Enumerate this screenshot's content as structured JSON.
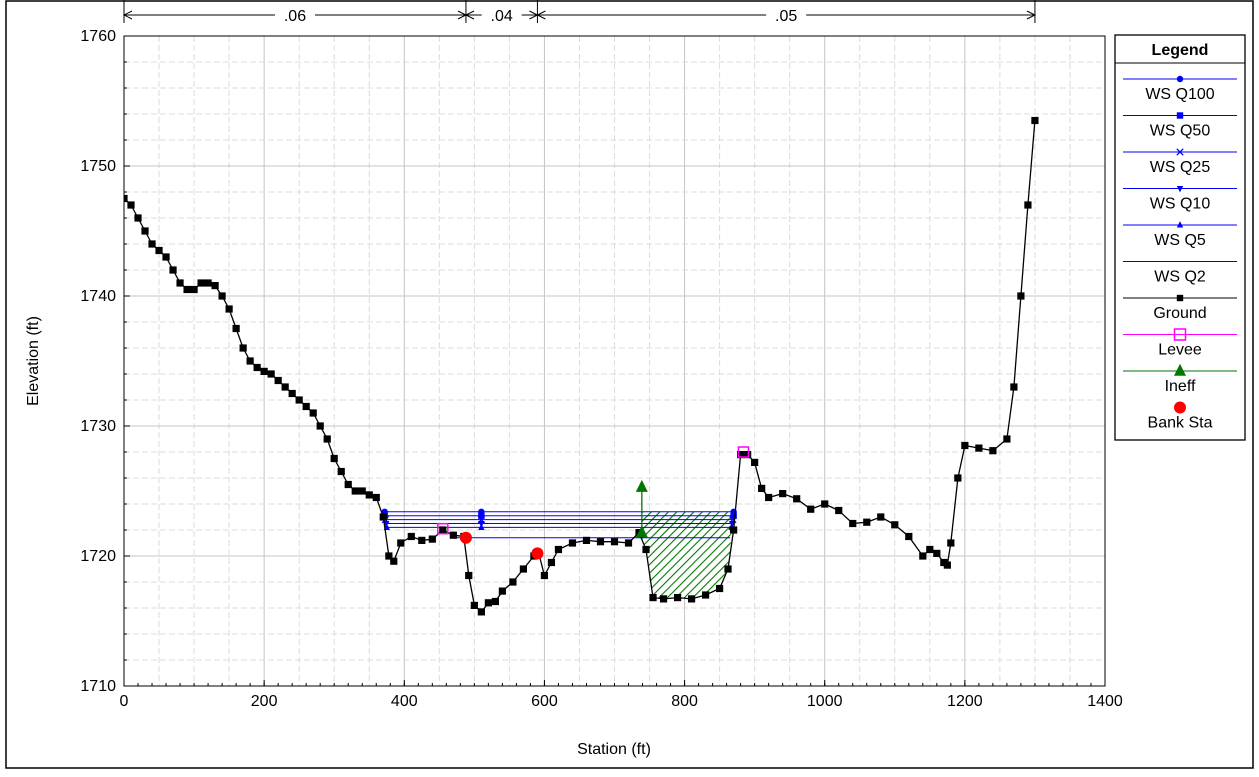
{
  "chart_data": {
    "type": "line",
    "title": "",
    "xlabel": "Station (ft)",
    "ylabel": "Elevation (ft)",
    "xlim": [
      0,
      1400
    ],
    "ylim": [
      1710,
      1760
    ],
    "x_ticks": [
      0,
      200,
      400,
      600,
      800,
      1000,
      1200,
      1400
    ],
    "y_ticks": [
      1710,
      1720,
      1730,
      1740,
      1750,
      1760
    ],
    "x_tick_labels": [
      "0",
      "200",
      "400",
      "600",
      "800",
      "1000",
      "1200",
      "1400"
    ],
    "y_tick_labels": [
      "1710",
      "1720",
      "1730",
      "1740",
      "1750",
      "1760"
    ],
    "grid": true,
    "legend_placement": "right-outside",
    "manning_n": {
      "breaks": [
        0,
        488,
        590,
        1300
      ],
      "labels": [
        ".06",
        ".04",
        ".05"
      ]
    },
    "series": [
      {
        "name": "WS Q100",
        "color": "#0000ff",
        "marker": "circle",
        "segments": [
          [
            [
              372,
              1723.4
            ],
            [
              870,
              1723.4
            ]
          ]
        ]
      },
      {
        "name": "WS Q50",
        "color": "#0000ff",
        "marker": "square",
        "segments": [
          [
            [
              372,
              1723.1
            ],
            [
              870,
              1723.1
            ]
          ]
        ]
      },
      {
        "name": "WS Q25",
        "color": "#0000ff",
        "marker": "x",
        "segments": [
          [
            [
              373,
              1722.8
            ],
            [
              869,
              1722.8
            ]
          ]
        ]
      },
      {
        "name": "WS Q10",
        "color": "#0000ff",
        "marker": "triangle-down",
        "segments": [
          [
            [
              374,
              1722.5
            ],
            [
              868,
              1722.5
            ]
          ]
        ]
      },
      {
        "name": "WS Q5",
        "color": "#0000ff",
        "marker": "triangle-up",
        "segments": [
          [
            [
              375,
              1722.2
            ],
            [
              867,
              1722.2
            ]
          ]
        ]
      },
      {
        "name": "WS Q2",
        "color": "#0000ff",
        "marker": "none",
        "segments": [
          [
            [
              466,
              1721.4
            ],
            [
              865,
              1721.4
            ]
          ]
        ]
      },
      {
        "name": "Ground",
        "color": "#000000",
        "marker": "square",
        "x": [
          0,
          10,
          20,
          30,
          40,
          50,
          60,
          70,
          80,
          90,
          100,
          110,
          120,
          130,
          140,
          150,
          160,
          170,
          180,
          190,
          200,
          210,
          220,
          230,
          240,
          250,
          260,
          270,
          280,
          290,
          300,
          310,
          320,
          330,
          340,
          350,
          360,
          370,
          378,
          385,
          395,
          410,
          425,
          440,
          455,
          470,
          485,
          492,
          500,
          510,
          520,
          530,
          540,
          555,
          570,
          585,
          592,
          600,
          610,
          620,
          640,
          660,
          680,
          700,
          720,
          735,
          745,
          755,
          770,
          790,
          810,
          830,
          850,
          862,
          870,
          880,
          890,
          900,
          910,
          920,
          940,
          960,
          980,
          1000,
          1020,
          1040,
          1060,
          1080,
          1100,
          1120,
          1140,
          1150,
          1160,
          1170,
          1175,
          1180,
          1190,
          1200,
          1220,
          1240,
          1260,
          1270,
          1280,
          1290,
          1300
        ],
        "y": [
          1747.5,
          1747,
          1746,
          1745,
          1744,
          1743.5,
          1743,
          1742,
          1741,
          1740.5,
          1740.5,
          1741,
          1741,
          1740.8,
          1740,
          1739,
          1737.5,
          1736,
          1735,
          1734.5,
          1734.2,
          1734,
          1733.5,
          1733,
          1732.5,
          1732,
          1731.5,
          1731,
          1730,
          1729,
          1727.5,
          1726.5,
          1725.5,
          1725,
          1725,
          1724.7,
          1724.5,
          1723,
          1720,
          1719.6,
          1721,
          1721.5,
          1721.2,
          1721.3,
          1722,
          1721.6,
          1721.5,
          1718.5,
          1716.2,
          1715.7,
          1716.4,
          1716.5,
          1717.3,
          1718,
          1719,
          1720,
          1720.2,
          1718.5,
          1719.5,
          1720.5,
          1721,
          1721.2,
          1721.1,
          1721.1,
          1721,
          1721.8,
          1720.5,
          1716.8,
          1716.7,
          1716.8,
          1716.7,
          1717,
          1717.5,
          1719,
          1722,
          1727.8,
          1727.8,
          1727.2,
          1725.2,
          1724.5,
          1724.8,
          1724.4,
          1723.6,
          1724,
          1723.5,
          1722.5,
          1722.6,
          1723,
          1722.4,
          1721.5,
          1720,
          1720.5,
          1720.2,
          1719.5,
          1719.3,
          1721,
          1726,
          1728.5,
          1728.3,
          1728.1,
          1729,
          1733,
          1740,
          1747,
          1753.5
        ]
      },
      {
        "name": "Levee",
        "color": "#ff00ff",
        "marker": "square-open",
        "x": [
          455,
          884
        ],
        "y": [
          1722.1,
          1728
        ]
      },
      {
        "name": "Ineff",
        "color": "#007700",
        "marker": "triangle-up",
        "x": [
          739,
          739
        ],
        "y": [
          1725.3,
          1721.8
        ]
      },
      {
        "name": "Bank Sta",
        "color": "#ff0000",
        "marker": "circle",
        "x": [
          488,
          590
        ],
        "y": [
          1721.4,
          1720.2
        ]
      }
    ],
    "ineffective_area": {
      "x_start": 739,
      "x_end": 866,
      "elevation": 1723.4,
      "color": "#007700"
    }
  },
  "legend": {
    "title": "Legend",
    "entries": [
      "WS Q100",
      "WS Q50",
      "WS Q25",
      "WS Q10",
      "WS Q5",
      "WS Q2",
      "Ground",
      "Levee",
      "Ineff",
      "Bank Sta"
    ]
  }
}
